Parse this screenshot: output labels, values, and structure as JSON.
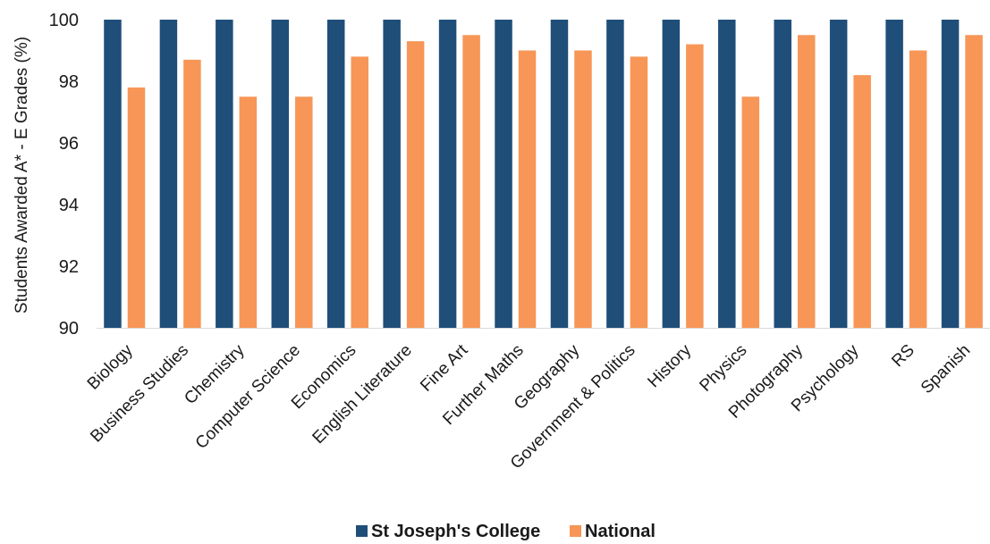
{
  "chart_data": {
    "type": "bar",
    "title": "",
    "xlabel": "",
    "ylabel": "Students Awarded A* - E Grades (%)",
    "ylim": [
      90,
      100
    ],
    "yticks": [
      90,
      92,
      94,
      96,
      98,
      100
    ],
    "grid": false,
    "legend_position": "bottom-center",
    "categories": [
      "Biology",
      "Business Studies",
      "Chemistry",
      "Computer Science",
      "Economics",
      "English Literature",
      "Fine Art",
      "Further Maths",
      "Geography",
      "Government & Politics",
      "History",
      "Physics",
      "Photography",
      "Psychology",
      "RS",
      "Spanish"
    ],
    "series": [
      {
        "name": "St Joseph's College",
        "color": "#1f4e79",
        "values": [
          100,
          100,
          100,
          100,
          100,
          100,
          100,
          100,
          100,
          100,
          100,
          100,
          100,
          100,
          100,
          100
        ]
      },
      {
        "name": "National",
        "color": "#f79656",
        "values": [
          97.8,
          98.7,
          97.5,
          97.5,
          98.8,
          99.3,
          99.5,
          99.0,
          99.0,
          98.8,
          99.2,
          97.5,
          99.5,
          98.2,
          99.0,
          99.5
        ]
      }
    ]
  }
}
